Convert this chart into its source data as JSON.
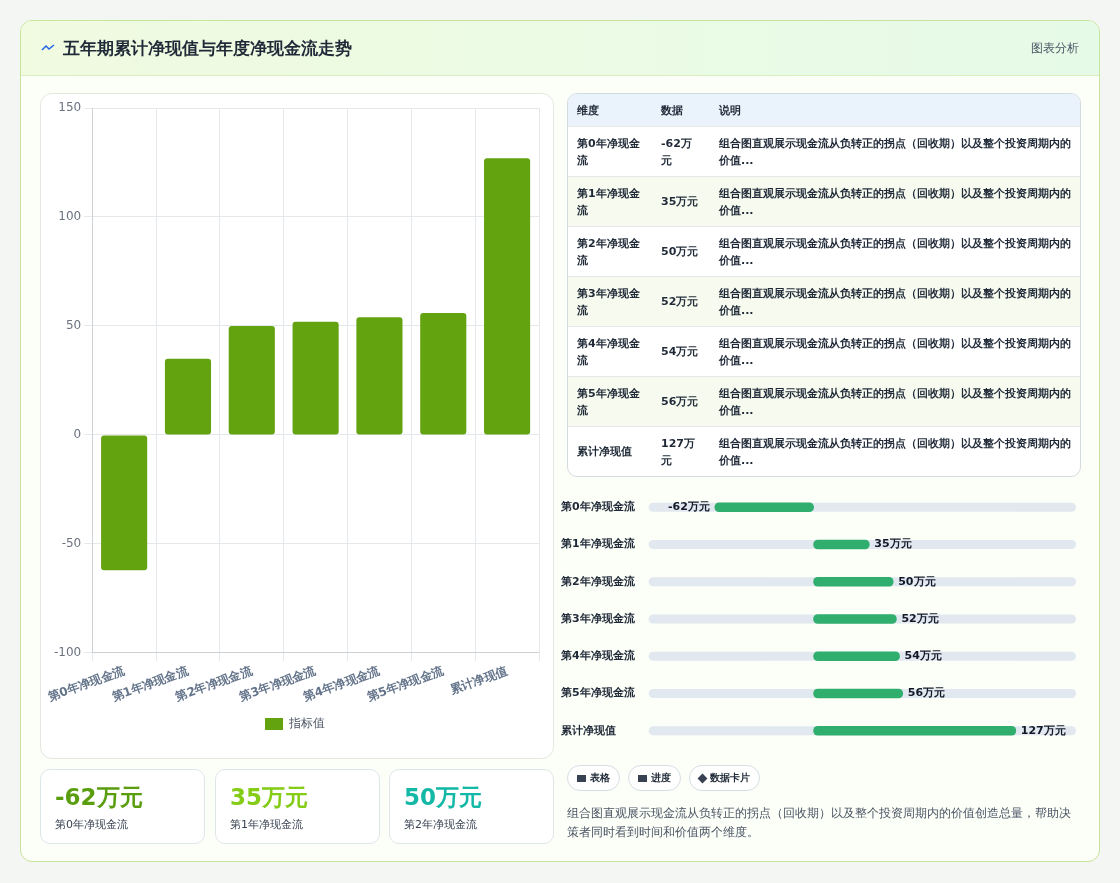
{
  "chart_data": [
    {
      "type": "bar",
      "title": "五年期累计净现值与年度净现金流走势",
      "categories": [
        "第0年净现金流",
        "第1年净现金流",
        "第2年净现金流",
        "第3年净现金流",
        "第4年净现金流",
        "第5年净现金流",
        "累计净现值"
      ],
      "series": [
        {
          "name": "指标值",
          "color": "#62a30f",
          "values": [
            -62,
            35,
            50,
            52,
            54,
            56,
            127
          ]
        }
      ],
      "ylim": [
        -100,
        150
      ],
      "yticks": [
        -100,
        -50,
        0,
        50,
        100,
        150
      ],
      "grid": true,
      "legend": "bottom",
      "annotations": [
        "图表分析",
        "维度",
        "数据",
        "说明",
        "组合图直观展示现金流从负转正的拐点（回收期）以及整个投资周期内的价值...",
        "表格",
        "进度",
        "数据卡片",
        "组合图直观展示现金流从负转正的拐点（回收期）以及整个投资周期内的价值创造总量，帮助决策者同时看到时间和价值两个维度。",
        "-62万元",
        "35万元",
        "50万元",
        "52万元",
        "54万元",
        "56万元",
        "127万元"
      ]
    },
    {
      "type": "bar",
      "orientation": "horizontal",
      "categories": [
        "第0年净现金流",
        "第1年净现金流",
        "第2年净现金流",
        "第3年净现金流",
        "第4年净现金流",
        "第5年净现金流",
        "累计净现值"
      ],
      "values": [
        -62,
        35,
        50,
        52,
        54,
        56,
        127
      ],
      "color": "#2fae6e",
      "value_labels": [
        "-62万元",
        "35万元",
        "50万元",
        "52万元",
        "54万元",
        "56万元",
        "127万元"
      ]
    }
  ]
}
